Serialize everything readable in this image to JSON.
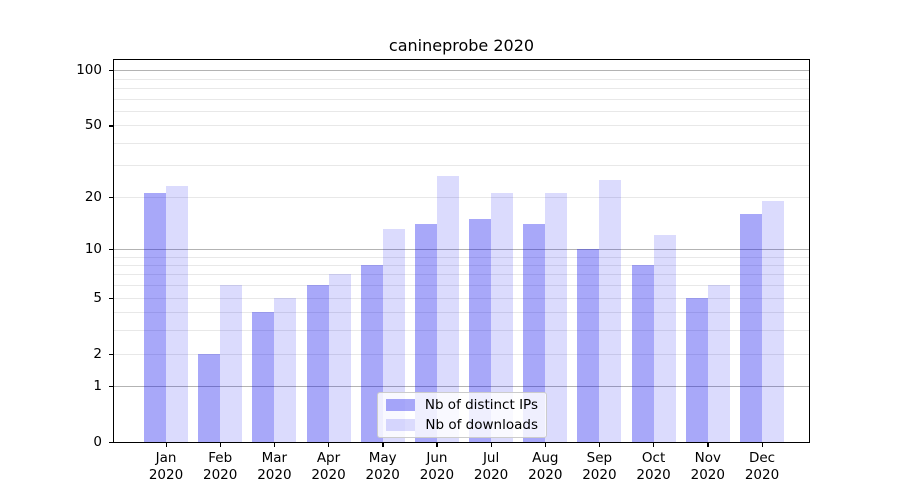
{
  "title": "canineprobe 2020",
  "legend": {
    "items": [
      {
        "label": "Nb of distinct IPs",
        "color": "rgba(0,0,238,0.34)"
      },
      {
        "label": "Nb of downloads",
        "color": "rgba(0,0,238,0.14)"
      }
    ]
  },
  "chart_data": {
    "type": "bar",
    "title": "canineprobe 2020",
    "categories": [
      "Jan 2020",
      "Feb 2020",
      "Mar 2020",
      "Apr 2020",
      "May 2020",
      "Jun 2020",
      "Jul 2020",
      "Aug 2020",
      "Sep 2020",
      "Oct 2020",
      "Nov 2020",
      "Dec 2020"
    ],
    "series": [
      {
        "name": "Nb of distinct IPs",
        "color": "rgba(0,0,238,0.34)",
        "values": [
          21,
          2,
          4,
          6,
          8,
          14,
          15,
          14,
          10,
          8,
          5,
          16
        ]
      },
      {
        "name": "Nb of downloads",
        "color": "rgba(0,0,238,0.14)",
        "values": [
          23,
          6,
          5,
          7,
          13,
          26,
          21,
          21,
          25,
          12,
          6,
          19
        ]
      }
    ],
    "xlabel": "",
    "ylabel": "",
    "yscale": "log1p",
    "ylim": [
      0,
      113.5
    ],
    "yticks": [
      0,
      1,
      2,
      5,
      10,
      20,
      50,
      100
    ],
    "major_grid_values": [
      1,
      10,
      100
    ],
    "minor_grid_values": [
      2,
      3,
      4,
      5,
      6,
      7,
      8,
      9,
      20,
      30,
      40,
      50,
      60,
      70,
      80,
      90
    ],
    "grid": true,
    "legend_position": "lower center",
    "grid_major_color": "#b3b3b3",
    "grid_minor_color": "#e8e8e8"
  }
}
